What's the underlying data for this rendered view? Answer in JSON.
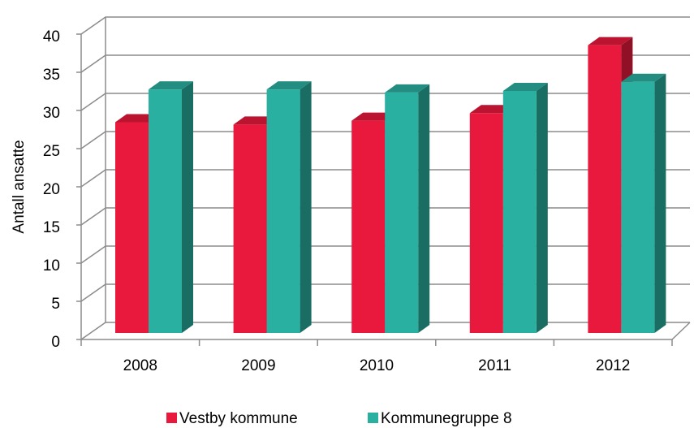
{
  "chart_data": {
    "type": "bar3d",
    "y_label": "Antall ansatte",
    "categories": [
      "2008",
      "2009",
      "2010",
      "2011",
      "2012"
    ],
    "series": [
      {
        "name": "Vestby kommune",
        "color": "#e8193c",
        "values": [
          27.6,
          27.3,
          27.8,
          28.8,
          37.7
        ]
      },
      {
        "name": "Kommunegruppe 8",
        "color": "#2ab0a0",
        "values": [
          31.9,
          31.9,
          31.5,
          31.7,
          32.9
        ]
      }
    ],
    "ylim": [
      0,
      40
    ],
    "yticks": [
      0,
      5,
      10,
      15,
      20,
      25,
      30,
      35,
      40
    ],
    "grid": true,
    "legend": "bottom"
  }
}
